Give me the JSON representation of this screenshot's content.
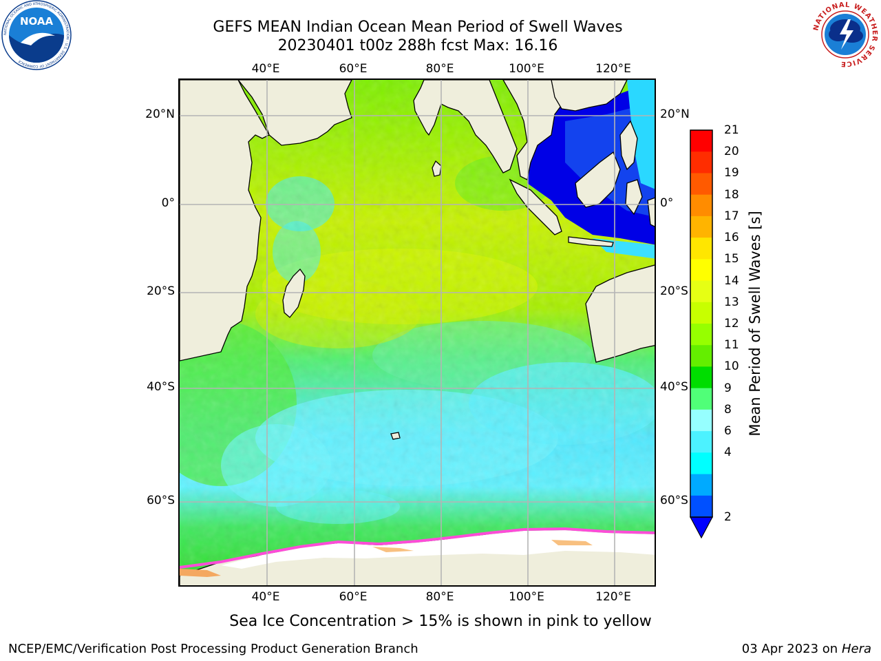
{
  "header": {
    "title_line1": "GEFS MEAN Indian Ocean Mean Period of Swell Waves",
    "title_line2": "20230401 t00z 288h fcst   Max: 16.16",
    "logo_left": "NOAA",
    "logo_left_ring_text": "NATIONAL OCEANIC AND ATMOSPHERIC ADMINISTRATION · U.S. DEPARTMENT OF COMMERCE",
    "logo_right_ring_text": "NATIONAL WEATHER SERVICE"
  },
  "map": {
    "region": "Indian Ocean",
    "lon_ticks": [
      "40°E",
      "60°E",
      "80°E",
      "100°E",
      "120°E"
    ],
    "lat_ticks": [
      "20°N",
      "0°",
      "20°S",
      "40°S",
      "60°S"
    ],
    "grid": true,
    "max_value": 16.16
  },
  "colorbar": {
    "label": "Mean Period of Swell Waves [s]",
    "ticks": [
      "21",
      "20",
      "19",
      "18",
      "17",
      "16",
      "15",
      "14",
      "13",
      "12",
      "11",
      "10",
      "9",
      "8",
      "6",
      "4",
      "2"
    ],
    "colors": [
      "#ff0000",
      "#ff2d00",
      "#ff5a00",
      "#ff8c00",
      "#ffb400",
      "#ffe600",
      "#ffff00",
      "#e6ff14",
      "#c8ff00",
      "#96ff00",
      "#64ee00",
      "#00dd00",
      "#50ff78",
      "#96ffff",
      "#4cf2ff",
      "#00ffff",
      "#00aaff",
      "#0050ff"
    ],
    "extend_color": "#0000ff"
  },
  "caption": "Sea Ice Concentration > 15% is shown in pink to yellow",
  "footer": {
    "left": "NCEP/EMC/Verification Post Processing Product Generation Branch",
    "right_date": "03 Apr 2023 on ",
    "right_host": "Hera"
  }
}
